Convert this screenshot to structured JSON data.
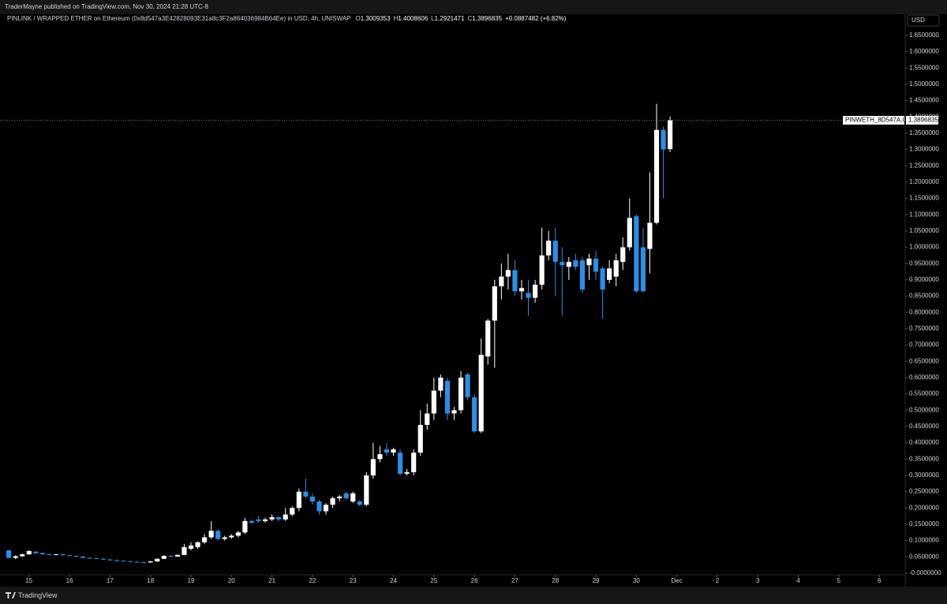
{
  "header": {
    "publisher": "TraderMayne published on TradingView.com, Nov 30, 2024 21:28 UTC-8"
  },
  "footer": {
    "brand": "TradingView"
  },
  "chart_data": {
    "type": "candlestick",
    "title": "PINLINK / WRAPPED ETHER on Ethereum (0x8d547a3E42828093E31a8c3F2a864036984B64Ee) in USD, 4h, UNISWAP",
    "ohlc_labels": [
      "O",
      "H",
      "L",
      "C"
    ],
    "change": "+0.0887482 (+6.82%)",
    "price_tag": "PINWETH_8D547A.USD",
    "y_axis_label": "USD",
    "up_color": "#ffffff",
    "down_color": "#2f8de4",
    "x": [
      14.5,
      14.667,
      14.833,
      15,
      15.167,
      15.333,
      15.5,
      15.667,
      15.833,
      16,
      16.167,
      16.333,
      16.5,
      16.667,
      16.833,
      17,
      17.167,
      17.333,
      17.5,
      17.667,
      17.833,
      18,
      18.167,
      18.333,
      18.5,
      18.667,
      18.833,
      19,
      19.167,
      19.333,
      19.5,
      19.667,
      19.833,
      20,
      20.167,
      20.333,
      20.5,
      20.667,
      20.833,
      21,
      21.167,
      21.333,
      21.5,
      21.667,
      21.833,
      22,
      22.167,
      22.333,
      22.5,
      22.667,
      22.833,
      23,
      23.167,
      23.333,
      23.5,
      23.667,
      23.833,
      24,
      24.167,
      24.333,
      24.5,
      24.667,
      24.833,
      25,
      25.167,
      25.333,
      25.5,
      25.667,
      25.833,
      26,
      26.167,
      26.333,
      26.5,
      26.667,
      26.833,
      27,
      27.167,
      27.333,
      27.5,
      27.667,
      27.833,
      28,
      28.167,
      28.333,
      28.5,
      28.667,
      28.833,
      29,
      29.167,
      29.333,
      29.5,
      29.667,
      29.833,
      30,
      30.167,
      30.333,
      30.5,
      30.667,
      30.833
    ],
    "open": [
      0.07,
      0.047,
      0.052,
      0.058,
      0.066,
      0.062,
      0.058,
      0.056,
      0.058,
      0.055,
      0.053,
      0.051,
      0.047,
      0.046,
      0.044,
      0.042,
      0.04,
      0.038,
      0.037,
      0.035,
      0.034,
      0.033,
      0.036,
      0.044,
      0.053,
      0.051,
      0.056,
      0.075,
      0.08,
      0.095,
      0.11,
      0.13,
      0.105,
      0.11,
      0.115,
      0.125,
      0.16,
      0.165,
      0.16,
      0.165,
      0.172,
      0.165,
      0.18,
      0.2,
      0.25,
      0.235,
      0.22,
      0.19,
      0.21,
      0.23,
      0.245,
      0.22,
      0.22,
      0.21,
      0.3,
      0.35,
      0.38,
      0.37,
      0.37,
      0.305,
      0.31,
      0.37,
      0.455,
      0.49,
      0.56,
      0.59,
      0.49,
      0.5,
      0.61,
      0.54,
      0.435,
      0.665,
      0.775,
      0.88,
      0.91,
      0.93,
      0.865,
      0.86,
      0.845,
      0.885,
      0.975,
      1.02,
      0.955,
      0.94,
      0.96,
      0.96,
      0.945,
      0.965,
      0.935,
      0.9,
      0.91,
      0.955,
      1.0,
      1.095,
      1.0,
      0.995,
      1.075,
      1.36,
      1.3009353
    ],
    "high": [
      0.072,
      0.055,
      0.06,
      0.07,
      0.068,
      0.064,
      0.06,
      0.059,
      0.059,
      0.057,
      0.055,
      0.052,
      0.049,
      0.047,
      0.046,
      0.044,
      0.042,
      0.04,
      0.038,
      0.037,
      0.036,
      0.038,
      0.046,
      0.055,
      0.056,
      0.058,
      0.09,
      0.095,
      0.097,
      0.12,
      0.16,
      0.135,
      0.115,
      0.12,
      0.13,
      0.17,
      0.165,
      0.175,
      0.17,
      0.18,
      0.175,
      0.2,
      0.205,
      0.26,
      0.29,
      0.245,
      0.225,
      0.215,
      0.235,
      0.24,
      0.25,
      0.25,
      0.225,
      0.31,
      0.4,
      0.39,
      0.4,
      0.385,
      0.38,
      0.32,
      0.38,
      0.5,
      0.52,
      0.6,
      0.61,
      0.6,
      0.51,
      0.62,
      0.615,
      0.55,
      0.72,
      0.78,
      0.9,
      0.95,
      0.98,
      0.96,
      0.9,
      0.9,
      0.9,
      1.06,
      1.05,
      1.06,
      1.0,
      0.97,
      0.98,
      0.97,
      0.98,
      0.99,
      0.94,
      0.96,
      0.98,
      1.03,
      1.15,
      1.1,
      1.06,
      1.23,
      1.44,
      1.37,
      1.4008606
    ],
    "low": [
      0.045,
      0.043,
      0.05,
      0.056,
      0.06,
      0.057,
      0.055,
      0.055,
      0.054,
      0.052,
      0.05,
      0.046,
      0.045,
      0.043,
      0.041,
      0.039,
      0.037,
      0.036,
      0.034,
      0.033,
      0.032,
      0.032,
      0.035,
      0.043,
      0.05,
      0.05,
      0.055,
      0.07,
      0.075,
      0.09,
      0.105,
      0.1,
      0.1,
      0.105,
      0.11,
      0.12,
      0.15,
      0.155,
      0.155,
      0.16,
      0.16,
      0.16,
      0.175,
      0.19,
      0.23,
      0.21,
      0.18,
      0.18,
      0.2,
      0.22,
      0.225,
      0.215,
      0.205,
      0.205,
      0.29,
      0.34,
      0.36,
      0.36,
      0.3,
      0.3,
      0.3,
      0.36,
      0.44,
      0.47,
      0.54,
      0.47,
      0.47,
      0.49,
      0.53,
      0.43,
      0.43,
      0.64,
      0.63,
      0.84,
      0.87,
      0.85,
      0.84,
      0.79,
      0.83,
      0.87,
      0.96,
      0.85,
      0.79,
      0.9,
      0.93,
      0.86,
      0.9,
      0.9,
      0.78,
      0.89,
      0.88,
      0.93,
      0.99,
      0.86,
      0.86,
      0.92,
      1.07,
      1.15,
      1.2921471
    ],
    "close": [
      0.047,
      0.052,
      0.058,
      0.068,
      0.061,
      0.058,
      0.056,
      0.058,
      0.055,
      0.053,
      0.051,
      0.047,
      0.046,
      0.044,
      0.042,
      0.04,
      0.038,
      0.037,
      0.035,
      0.034,
      0.033,
      0.036,
      0.044,
      0.053,
      0.051,
      0.056,
      0.08,
      0.085,
      0.095,
      0.11,
      0.13,
      0.105,
      0.11,
      0.115,
      0.125,
      0.16,
      0.155,
      0.16,
      0.165,
      0.172,
      0.165,
      0.18,
      0.2,
      0.25,
      0.235,
      0.22,
      0.19,
      0.21,
      0.23,
      0.235,
      0.23,
      0.245,
      0.21,
      0.3,
      0.35,
      0.365,
      0.37,
      0.38,
      0.305,
      0.31,
      0.37,
      0.455,
      0.49,
      0.56,
      0.6,
      0.49,
      0.5,
      0.6,
      0.54,
      0.435,
      0.67,
      0.775,
      0.88,
      0.91,
      0.93,
      0.865,
      0.875,
      0.845,
      0.885,
      0.975,
      1.02,
      0.955,
      0.945,
      0.955,
      0.94,
      0.87,
      0.965,
      0.925,
      0.87,
      0.935,
      0.96,
      1.0,
      1.09,
      0.865,
      0.865,
      1.075,
      1.36,
      1.3,
      1.3896835
    ],
    "xlim": [
      14.38,
      36.64
    ],
    "xticks": [
      15,
      16,
      17,
      18,
      19,
      20,
      21,
      22,
      23,
      24,
      25,
      26,
      27,
      28,
      29,
      30,
      {
        "value": 31,
        "label": "Dec"
      },
      {
        "value": 32,
        "label": "2"
      },
      {
        "value": 33,
        "label": "3"
      },
      {
        "value": 34,
        "label": "4"
      },
      {
        "value": 35,
        "label": "5"
      },
      {
        "value": 36,
        "label": "6"
      }
    ],
    "ylim": [
      -0.005,
      1.715
    ],
    "yticks": [
      {
        "value": 0,
        "label": "-0.0000000"
      },
      {
        "value": 0.05,
        "label": "0.0500000"
      },
      {
        "value": 0.1,
        "label": "0.1000000"
      },
      {
        "value": 0.15,
        "label": "0.1500000"
      },
      {
        "value": 0.2,
        "label": "0.2000000"
      },
      {
        "value": 0.25,
        "label": "0.2500000"
      },
      {
        "value": 0.3,
        "label": "0.3000000"
      },
      {
        "value": 0.35,
        "label": "0.3500000"
      },
      {
        "value": 0.4,
        "label": "0.4000000"
      },
      {
        "value": 0.45,
        "label": "0.4500000"
      },
      {
        "value": 0.5,
        "label": "0.5000000"
      },
      {
        "value": 0.55,
        "label": "0.5500000"
      },
      {
        "value": 0.6,
        "label": "0.6000000"
      },
      {
        "value": 0.65,
        "label": "0.6500000"
      },
      {
        "value": 0.7,
        "label": "0.7000000"
      },
      {
        "value": 0.75,
        "label": "0.7500000"
      },
      {
        "value": 0.8,
        "label": "0.8000000"
      },
      {
        "value": 0.85,
        "label": "0.8500000"
      },
      {
        "value": 0.9,
        "label": "0.9000000"
      },
      {
        "value": 0.95,
        "label": "0.9500000"
      },
      {
        "value": 1,
        "label": "1.0000000"
      },
      {
        "value": 1.05,
        "label": "1.0500000"
      },
      {
        "value": 1.1,
        "label": "1.1000000"
      },
      {
        "value": 1.15,
        "label": "1.1500000"
      },
      {
        "value": 1.2,
        "label": "1.2000000"
      },
      {
        "value": 1.25,
        "label": "1.2500000"
      },
      {
        "value": 1.3,
        "label": "1.3000000"
      },
      {
        "value": 1.35,
        "label": "1.3500000"
      },
      {
        "value": 1.4,
        "label": "1.4000000"
      },
      {
        "value": 1.45,
        "label": "1.4500000"
      },
      {
        "value": 1.5,
        "label": "1.5000000"
      },
      {
        "value": 1.55,
        "label": "1.5500000"
      },
      {
        "value": 1.6,
        "label": "1.6000000"
      },
      {
        "value": 1.65,
        "label": "1.6500000"
      }
    ]
  }
}
